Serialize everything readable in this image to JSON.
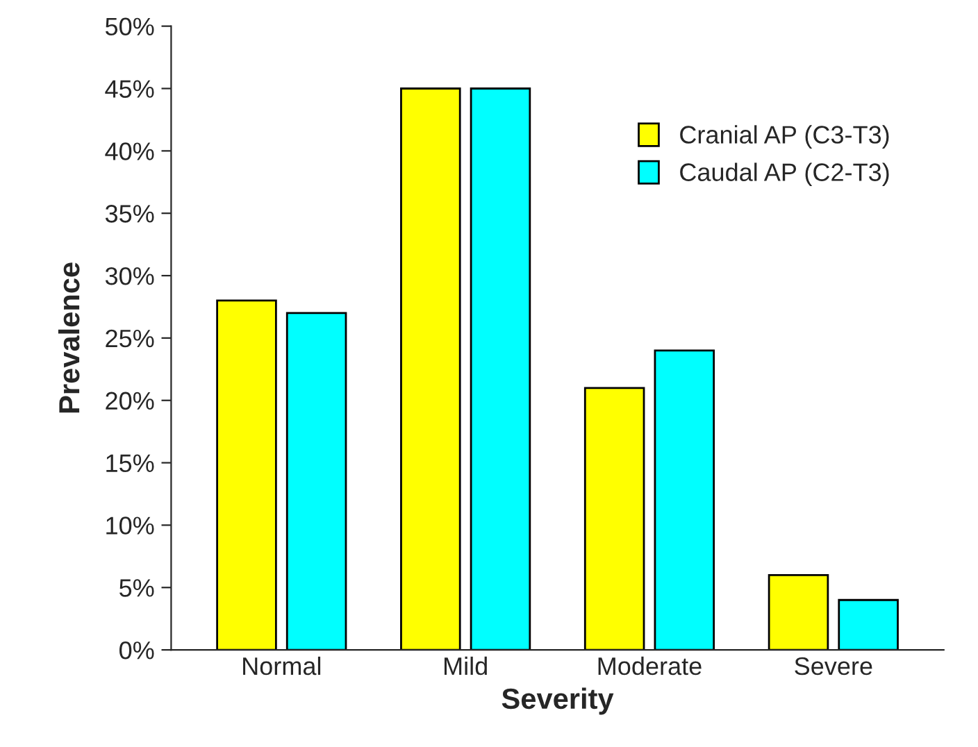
{
  "chart_data": {
    "type": "bar",
    "xlabel": "Severity",
    "ylabel": "Prevalence",
    "categories": [
      "Normal",
      "Mild",
      "Moderate",
      "Severe"
    ],
    "series": [
      {
        "name": "Cranial AP (C3-T3)",
        "color": "#ffff00",
        "values": [
          28,
          45,
          21,
          6
        ]
      },
      {
        "name": "Caudal AP (C2-T3)",
        "color": "#00ffff",
        "values": [
          27,
          45,
          24,
          4
        ]
      }
    ],
    "ylim": [
      0,
      50
    ],
    "yticks": [
      {
        "value": 0,
        "label": "0%"
      },
      {
        "value": 5,
        "label": "5%"
      },
      {
        "value": 10,
        "label": "10%"
      },
      {
        "value": 15,
        "label": "15%"
      },
      {
        "value": 20,
        "label": "20%"
      },
      {
        "value": 25,
        "label": "25%"
      },
      {
        "value": 30,
        "label": "30%"
      },
      {
        "value": 35,
        "label": "35%"
      },
      {
        "value": 40,
        "label": "40%"
      },
      {
        "value": 45,
        "label": "45%"
      },
      {
        "value": 50,
        "label": "50%"
      }
    ],
    "grid": false,
    "legend": "top right"
  }
}
